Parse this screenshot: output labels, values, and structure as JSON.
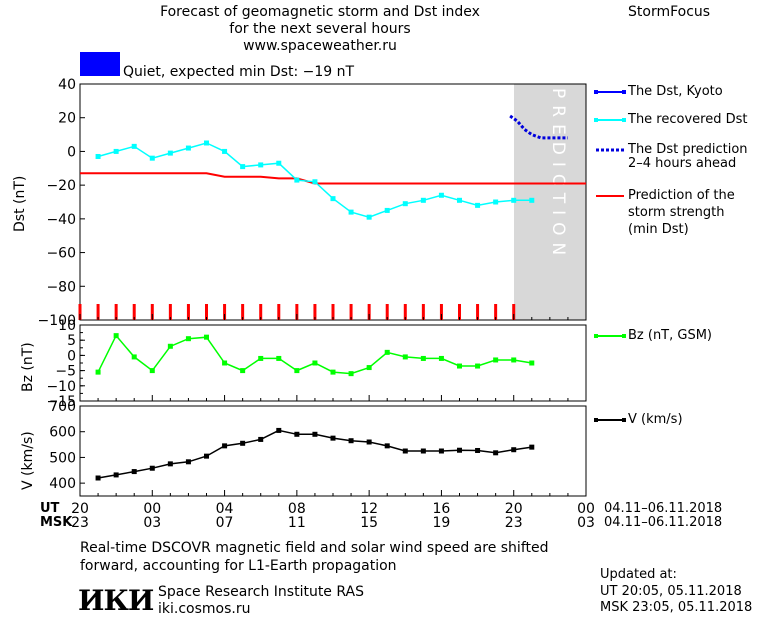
{
  "header": {
    "title_line1": "Forecast of geomagnetic storm and Dst index",
    "title_line2": "for the next several hours",
    "url": "www.spaceweather.ru",
    "brand": "StormFocus"
  },
  "status": {
    "text": "Quiet, expected min Dst: −19 nT",
    "color": "#0000ff"
  },
  "legend": {
    "dst_kyoto": "The Dst, Kyoto",
    "dst_recovered": "The recovered Dst",
    "dst_prediction_l1": "The Dst prediction",
    "dst_prediction_l2": "2–4 hours ahead",
    "storm_l1": "Prediction of the",
    "storm_l2": "storm strength",
    "storm_l3": "(min Dst)",
    "bz": "Bz (nT, GSM)",
    "v": "V (km/s)"
  },
  "time_axis": {
    "ut_label": "UT",
    "msk_label": "MSK",
    "ut_ticks": [
      "20",
      "00",
      "04",
      "08",
      "12",
      "16",
      "20",
      "00"
    ],
    "msk_ticks": [
      "23",
      "03",
      "07",
      "11",
      "15",
      "19",
      "23",
      "03"
    ],
    "ut_range": "04.11–06.11.2018",
    "msk_range": "04.11–06.11.2018"
  },
  "footer": {
    "note_line1": "Real-time DSCOVR magnetic field and solar wind speed are shifted",
    "note_line2": "forward, accounting for L1-Earth propagation",
    "logo": "ИКИ",
    "institute": "Space Research Institute RAS",
    "site": "iki.cosmos.ru",
    "updated_label": "Updated at:",
    "updated_ut": "UT   20:05, 05.11.2018",
    "updated_msk": "MSK 23:05, 05.11.2018"
  },
  "prediction_label": "PREDICTION",
  "colors": {
    "dst_kyoto": "#0000ff",
    "dst_recovered": "#00ffff",
    "dst_prediction": "#0000dd",
    "storm_strength": "#ff0000",
    "bz": "#00ff00",
    "v": "#000000",
    "prediction_band": "#d8d8d8"
  },
  "chart_data": [
    {
      "type": "line",
      "panel": "dst",
      "ylabel": "Dst (nT)",
      "ylim": [
        -100,
        40
      ],
      "yticks": [
        40,
        20,
        0,
        -20,
        -40,
        -60,
        -80,
        -100
      ],
      "x_unit": "hours from 20 UT 04.11.2018",
      "xlim": [
        0,
        28
      ],
      "prediction_start_x": 24,
      "series": [
        {
          "name": "The recovered Dst",
          "x": [
            1,
            2,
            3,
            4,
            5,
            6,
            7,
            8,
            9,
            10,
            11,
            12,
            13,
            14,
            15,
            16,
            17,
            18,
            19,
            20,
            21,
            22,
            23,
            24,
            25
          ],
          "values": [
            -3,
            0,
            3,
            -4,
            -1,
            2,
            5,
            0,
            -9,
            -8,
            -7,
            -17,
            -18,
            -28,
            -36,
            -39,
            -35,
            -31,
            -29,
            -26,
            -29,
            -32,
            -30,
            -29,
            -29
          ]
        },
        {
          "name": "The Dst prediction 2–4 hours ahead",
          "x": [
            23.8,
            24.2,
            24.6,
            25,
            25.5,
            26,
            26.5,
            27
          ],
          "values": [
            21,
            18,
            13,
            10,
            8,
            8,
            8,
            8
          ]
        },
        {
          "name": "Prediction of the storm strength (min Dst)",
          "x": [
            0,
            7,
            8,
            10,
            11,
            12,
            13,
            28
          ],
          "values": [
            -13,
            -13,
            -15,
            -15,
            -16,
            -16,
            -19,
            -19
          ]
        }
      ],
      "event_marker_x": [
        0,
        1,
        2,
        3,
        4,
        5,
        6,
        7,
        8,
        9,
        10,
        11,
        12,
        13,
        14,
        15,
        16,
        17,
        18,
        19,
        20,
        21,
        22,
        23,
        24
      ]
    },
    {
      "type": "line",
      "panel": "bz",
      "ylabel": "Bz (nT)",
      "ylim": [
        -15,
        10
      ],
      "yticks": [
        10,
        5,
        0,
        -5,
        -10,
        -15
      ],
      "series": [
        {
          "name": "Bz (nT, GSM)",
          "x": [
            1,
            2,
            3,
            4,
            5,
            6,
            7,
            8,
            9,
            10,
            11,
            12,
            13,
            14,
            15,
            16,
            17,
            18,
            19,
            20,
            21,
            22,
            23,
            24,
            25
          ],
          "values": [
            -5.5,
            6.5,
            -0.5,
            -5,
            3,
            5.5,
            6,
            -2.5,
            -5,
            -1,
            -1,
            -5,
            -2.5,
            -5.5,
            -6,
            -4,
            1,
            -0.5,
            -1,
            -1,
            -3.5,
            -3.5,
            -1.5,
            -1.5,
            -2.5
          ]
        }
      ]
    },
    {
      "type": "line",
      "panel": "v",
      "ylabel": "V (km/s)",
      "ylim": [
        350,
        700
      ],
      "yticks": [
        700,
        600,
        500,
        400
      ],
      "series": [
        {
          "name": "V (km/s)",
          "x": [
            1,
            2,
            3,
            4,
            5,
            6,
            7,
            8,
            9,
            10,
            11,
            12,
            13,
            14,
            15,
            16,
            17,
            18,
            19,
            20,
            21,
            22,
            23,
            24,
            25
          ],
          "values": [
            420,
            432,
            445,
            458,
            475,
            483,
            505,
            545,
            555,
            570,
            605,
            590,
            590,
            575,
            565,
            560,
            545,
            525,
            525,
            525,
            528,
            527,
            518,
            530,
            540
          ]
        }
      ]
    }
  ]
}
